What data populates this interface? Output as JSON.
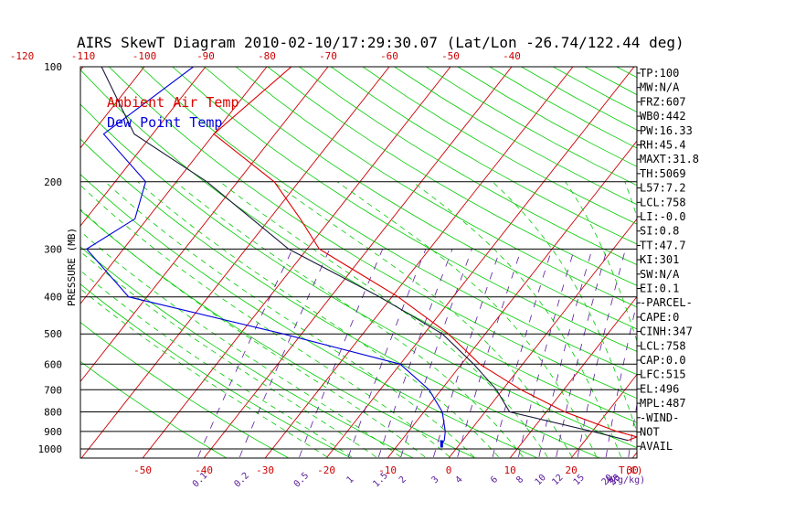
{
  "chart_data": {
    "type": "line",
    "title": "AIRS SkewT Diagram 2010-02-10/17:29:30.07 (Lat/Lon -26.74/122.44 deg)",
    "ylabel": "PRESSURE (MB)",
    "xlabel_bottom": "T(C)",
    "mixing_ratio_label": "W(g/kg)",
    "pressure_ticks": [
      "100",
      "200",
      "300",
      "400",
      "500",
      "600",
      "700",
      "800",
      "900",
      "1000"
    ],
    "pressure_values": [
      100,
      200,
      300,
      400,
      500,
      600,
      700,
      800,
      900,
      1000
    ],
    "top_temp_ticks": [
      "-120",
      "-110",
      "-100",
      "-90",
      "-80",
      "-70",
      "-60",
      "-50",
      "-40"
    ],
    "bottom_temp_ticks": [
      "-50",
      "-40",
      "-30",
      "-20",
      "-10",
      "0",
      "10",
      "20",
      "30"
    ],
    "mixing_ratio_ticks": [
      "0.1",
      "0.2",
      "0.5",
      "1",
      "1.5",
      "2",
      "3",
      "4",
      "6",
      "8",
      "10",
      "12",
      "15",
      "20",
      "25",
      "30"
    ],
    "legend": [
      "Ambient Air Temp",
      "Dew Point Temp"
    ],
    "colors": {
      "ambient": "#dd0000",
      "dewpoint": "#0000dd",
      "parcel": "#1a1a3a",
      "isotherm": "#cc0000",
      "dry_adiabat": "#00cc00",
      "moist_adiabat": "#00cc00",
      "mixing_ratio": "#5a1a9a",
      "isobar": "#000000"
    },
    "series": [
      {
        "name": "Ambient Air Temp",
        "points": [
          {
            "p": 100,
            "t": -76
          },
          {
            "p": 150,
            "t": -80
          },
          {
            "p": 200,
            "t": -64
          },
          {
            "p": 250,
            "t": -55
          },
          {
            "p": 300,
            "t": -48
          },
          {
            "p": 400,
            "t": -29
          },
          {
            "p": 500,
            "t": -16
          },
          {
            "p": 600,
            "t": -7
          },
          {
            "p": 700,
            "t": 3
          },
          {
            "p": 800,
            "t": 13
          },
          {
            "p": 900,
            "t": 24
          },
          {
            "p": 930,
            "t": 28
          },
          {
            "p": 950,
            "t": 27
          }
        ]
      },
      {
        "name": "Dew Point Temp",
        "points": [
          {
            "p": 100,
            "t": -92
          },
          {
            "p": 150,
            "t": -98
          },
          {
            "p": 200,
            "t": -85
          },
          {
            "p": 250,
            "t": -82
          },
          {
            "p": 300,
            "t": -86
          },
          {
            "p": 400,
            "t": -73
          },
          {
            "p": 500,
            "t": -43
          },
          {
            "p": 600,
            "t": -20
          },
          {
            "p": 700,
            "t": -12
          },
          {
            "p": 800,
            "t": -7
          },
          {
            "p": 900,
            "t": -4
          },
          {
            "p": 950,
            "t": -3
          },
          {
            "p": 970,
            "t": -3
          }
        ]
      },
      {
        "points": [
          {
            "p": 100,
            "t": -107
          },
          {
            "p": 150,
            "t": -93
          },
          {
            "p": 200,
            "t": -75
          },
          {
            "p": 300,
            "t": -53
          },
          {
            "p": 400,
            "t": -32
          },
          {
            "p": 500,
            "t": -17
          },
          {
            "p": 600,
            "t": -8
          },
          {
            "p": 700,
            "t": -1
          },
          {
            "p": 800,
            "t": 4
          },
          {
            "p": 900,
            "t": 20
          },
          {
            "p": 950,
            "t": 27
          }
        ]
      }
    ],
    "indices": [
      "TP:100",
      "MW:N/A",
      "FRZ:607",
      "WB0:442",
      "PW:16.33",
      "RH:45.4",
      "MAXT:31.8",
      "TH:5069",
      "L57:7.2",
      "LCL:758",
      "LI:-0.0",
      "SI:0.8",
      "TT:47.7",
      "KI:301",
      "SW:N/A",
      "EI:0.1",
      "-PARCEL-",
      "CAPE:0",
      "CINH:347",
      "LCL:758",
      "CAP:0.0",
      "LFC:515",
      "EL:496",
      "MPL:487",
      "-WIND-",
      "NOT",
      "AVAIL"
    ]
  }
}
